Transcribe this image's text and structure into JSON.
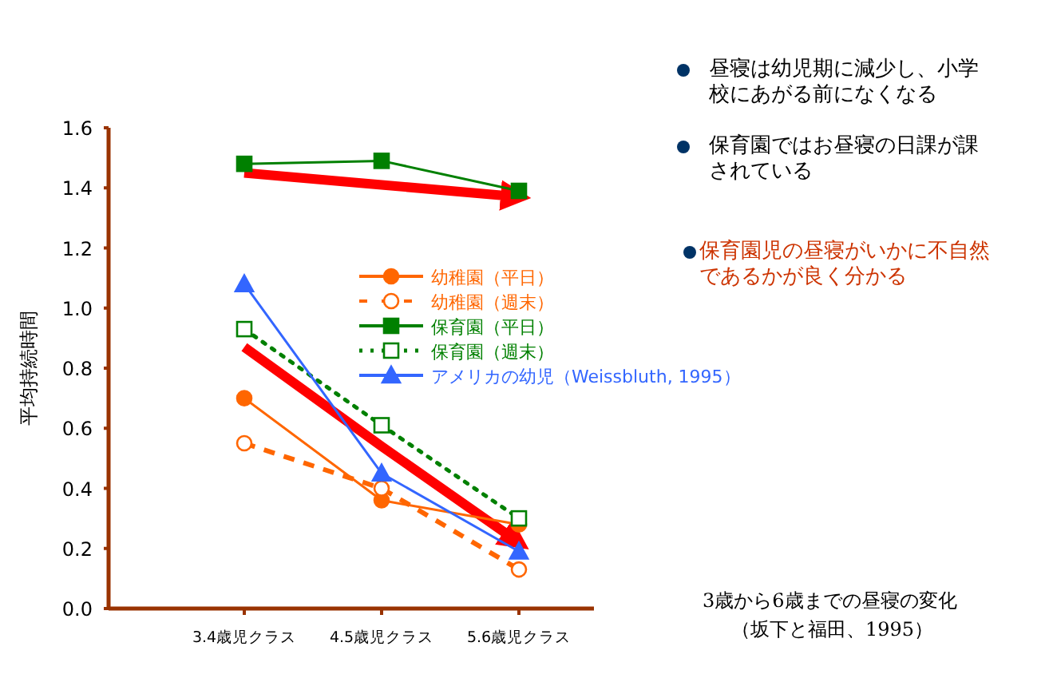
{
  "chart_data": {
    "type": "line",
    "ylabel": "平均持続時間",
    "categories": [
      "3.4歳児クラス",
      "4.5歳児クラス",
      "5.6歳児クラス"
    ],
    "ylim": [
      0,
      1.6
    ],
    "yticks": [
      {
        "value": 0,
        "label": "0.0"
      },
      {
        "value": 0.2,
        "label": "0.2"
      },
      {
        "value": 0.4,
        "label": "0.4"
      },
      {
        "value": 0.6,
        "label": "0.6"
      },
      {
        "value": 0.8,
        "label": "0.8"
      },
      {
        "value": 1.0,
        "label": "1.0"
      },
      {
        "value": 1.2,
        "label": "1.2"
      },
      {
        "value": 1.4,
        "label": "1.4"
      },
      {
        "value": 1.6,
        "label": "1.6"
      }
    ],
    "grid": false,
    "legend": "right",
    "series": [
      {
        "name": "幼稚園（平日）",
        "color": "#ff6600",
        "marker": "circle",
        "line_style": "solid",
        "values": [
          0.7,
          0.36,
          0.28
        ]
      },
      {
        "name": "幼稚園（週末）",
        "color": "#ff6600",
        "marker": "circle",
        "line_style": "dashed",
        "values": [
          0.55,
          0.4,
          0.13
        ]
      },
      {
        "name": "保育園（平日）",
        "color": "#008000",
        "marker": "square",
        "line_style": "solid",
        "values": [
          1.48,
          1.49,
          1.39
        ]
      },
      {
        "name": "保育園（週末）",
        "color": "#008000",
        "marker": "square",
        "line_style": "dotted",
        "values": [
          0.93,
          0.61,
          0.3
        ]
      },
      {
        "name": "アメリカの幼児（Weissbluth, 1995）",
        "color": "#3366ff",
        "marker": "triangle",
        "line_style": "solid",
        "values": [
          1.08,
          0.45,
          0.19
        ]
      },
      {
        "color": "#ff0000",
        "marker": "none",
        "line_style": "solid",
        "values": [
          1.45,
          1.41,
          1.37
        ]
      },
      {
        "color": "#ff0000",
        "marker": "none",
        "line_style": "solid",
        "values": [
          0.87,
          0.54,
          0.22
        ]
      }
    ],
    "annotations": [
      "昼寝は幼児期に減少し、小学校にあがる前になくなる",
      "保育園ではお昼寝の日課が課されている",
      "保育園児の昼寝がいかに不自然であるかが良く分かる",
      "3歳から6歳までの昼寝の変化",
      "（坂下と福田、1995）"
    ]
  }
}
